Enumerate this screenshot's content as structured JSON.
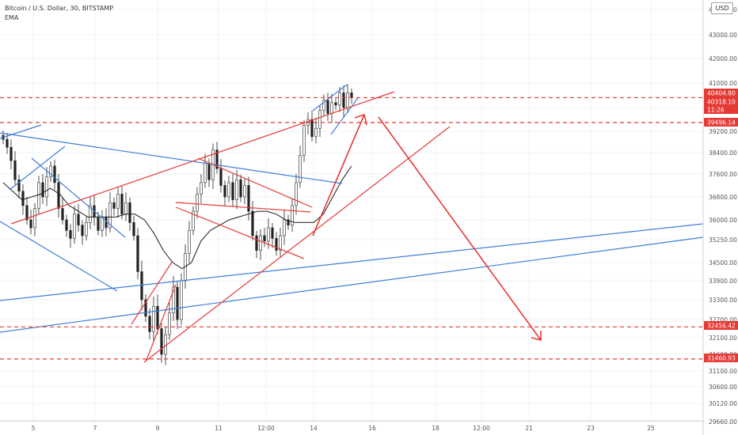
{
  "header": {
    "symbol": "Bitcoin / U.S. Dollar, 30, BITSTAMP",
    "indicator": "EMA"
  },
  "currency_button": "USD",
  "chart_data": {
    "type": "line",
    "title": "Bitcoin / U.S. Dollar, 30, BITSTAMP",
    "xlabel": "",
    "ylabel": "",
    "x_ticks": [
      "5",
      "7",
      "9",
      "11",
      "12:00",
      "14",
      "16",
      "18",
      "12:00",
      "21",
      "23",
      "25"
    ],
    "y_ticks": [
      29660,
      30120,
      30600,
      31100,
      31600,
      32100,
      32700,
      33300,
      33900,
      34500,
      35250,
      36000,
      36800,
      37600,
      38400,
      39200,
      40000,
      41000,
      42000,
      43000,
      44000
    ],
    "ylim": [
      29660,
      44000
    ],
    "grid": true,
    "legend": "none",
    "series": [
      {
        "name": "",
        "values": [
          38900,
          38600,
          38100,
          37400,
          37000,
          36500,
          36000,
          35700,
          36400,
          37300,
          36800,
          37500,
          37900,
          37300,
          36400,
          36000,
          35600,
          35300,
          36200,
          35800,
          35400,
          35900,
          36500,
          36100,
          35600,
          36100,
          35700,
          36600,
          36400,
          36900,
          36200,
          36600,
          35900,
          35400,
          34200,
          33300,
          32800,
          32300,
          33100,
          32400,
          31600,
          32200,
          32900,
          33700,
          32700,
          33900,
          34800,
          35600,
          36300,
          36900,
          37300,
          38000,
          37400,
          38500,
          37800,
          37200,
          36800,
          37300,
          36700,
          37400,
          36800,
          37200,
          36300,
          35400,
          34900,
          35400,
          35200,
          35700,
          35300,
          34900,
          35400,
          36000,
          35800,
          36500,
          37300,
          38300,
          39400,
          39600,
          39000,
          39300,
          39900,
          40300,
          39800,
          40200,
          40100,
          40600,
          40000,
          40600,
          40400
        ]
      },
      {
        "name": "EMA",
        "values": [
          37300,
          37000,
          36700,
          36800,
          36900,
          37100,
          36900,
          36500,
          36300,
          36100,
          36100,
          36100,
          36100,
          36200,
          36200,
          36000,
          35500,
          34900,
          34500,
          34300,
          34500,
          35200,
          35600,
          35800,
          36000,
          36100,
          36200,
          36300,
          36300,
          36200,
          36000,
          35900,
          35900,
          35900,
          36200,
          36800,
          37400,
          37900
        ]
      }
    ],
    "price_labels": [
      {
        "value": "40404.80",
        "style": "filled"
      },
      {
        "value": "40318.10",
        "style": "filled"
      },
      {
        "value": "11:26",
        "style": "filled"
      },
      {
        "value": "39496.14",
        "style": "filled"
      },
      {
        "value": "32456.42",
        "style": "filled"
      },
      {
        "value": "31460.93",
        "style": "filled"
      }
    ],
    "horizontal_levels": [
      40404.8,
      39496.14,
      32456.42,
      31460.93
    ],
    "colors": {
      "candle_up": "#222222",
      "candle_down": "#222222",
      "ema": "#1a1a1a",
      "red_lines": "#e53935",
      "blue_lines": "#3f7fd8",
      "price_label_bg": "#e53935",
      "axis_text": "#555555"
    }
  }
}
